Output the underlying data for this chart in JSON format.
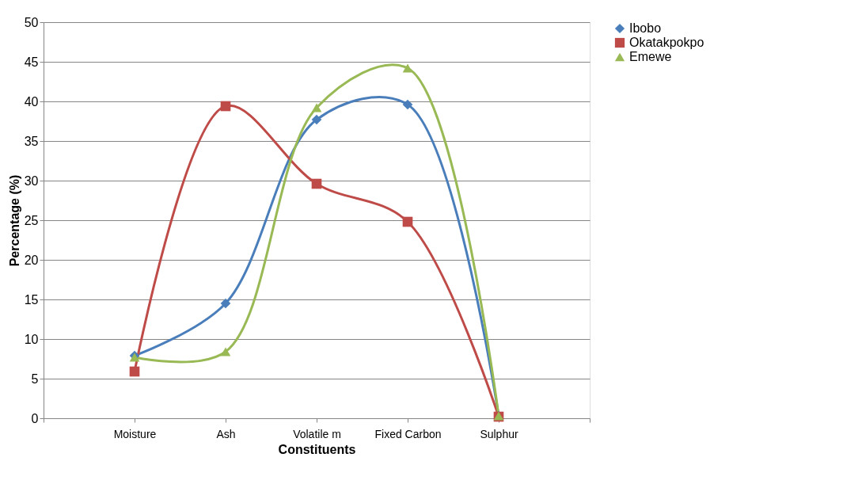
{
  "chart_data": {
    "type": "line",
    "xlabel": "Constituents",
    "ylabel": "Percentage (%)",
    "categories": [
      null,
      "Moisture",
      "Ash",
      "Volatile m",
      "Fixed Carbon",
      "Sulphur",
      null
    ],
    "series": [
      {
        "name": "Ibobo",
        "color": "#4a7ebb",
        "marker": "diamond",
        "values": [
          null,
          7.9,
          14.5,
          37.7,
          39.6,
          0.3,
          null
        ]
      },
      {
        "name": "Okatakpokpo",
        "color": "#be4b48",
        "marker": "square",
        "values": [
          null,
          5.9,
          39.4,
          29.6,
          24.8,
          0.2,
          null
        ]
      },
      {
        "name": "Emewe",
        "color": "#98b954",
        "marker": "triangle",
        "values": [
          null,
          7.7,
          8.4,
          39.2,
          44.2,
          0.3,
          null
        ]
      }
    ],
    "ylim": [
      0,
      50
    ],
    "yticks": [
      0,
      5,
      10,
      15,
      20,
      25,
      30,
      35,
      40,
      45,
      50
    ],
    "grid": "y",
    "legend": "right",
    "line_style": "solid"
  }
}
